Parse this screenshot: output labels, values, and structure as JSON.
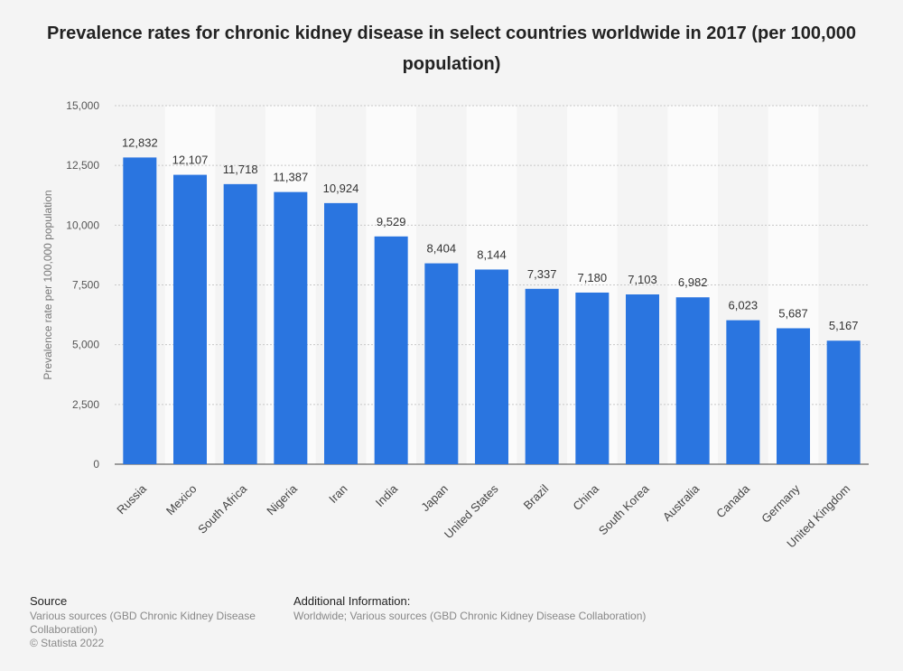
{
  "chart_data": {
    "type": "bar",
    "title": "Prevalence rates for chronic kidney disease in select countries worldwide in 2017 (per 100,000 population)",
    "ylabel": "Prevalence rate per 100,000 population",
    "xlabel": "",
    "ylim": [
      0,
      15000
    ],
    "yticks": [
      0,
      2500,
      5000,
      7500,
      10000,
      12500,
      15000
    ],
    "ytick_labels": [
      "0",
      "2,500",
      "5,000",
      "7,500",
      "10,000",
      "12,500",
      "15,000"
    ],
    "grid": true,
    "categories": [
      "Russia",
      "Mexico",
      "South Africa",
      "Nigeria",
      "Iran",
      "India",
      "Japan",
      "United States",
      "Brazil",
      "China",
      "South Korea",
      "Australia",
      "Canada",
      "Germany",
      "United Kingdom"
    ],
    "values": [
      12832,
      12107,
      11718,
      11387,
      10924,
      9529,
      8404,
      8144,
      7337,
      7180,
      7103,
      6982,
      6023,
      5687,
      5167
    ],
    "value_labels": [
      "12,832",
      "12,107",
      "11,718",
      "11,387",
      "10,924",
      "9,529",
      "8,404",
      "8,144",
      "7,337",
      "7,180",
      "7,103",
      "6,982",
      "6,023",
      "5,687",
      "5,167"
    ],
    "bar_color": "#2a75e0"
  },
  "footer": {
    "source_heading": "Source",
    "source_text": "Various sources (GBD Chronic Kidney Disease Collaboration)",
    "copyright": "© Statista 2022",
    "info_heading": "Additional Information:",
    "info_text": "Worldwide; Various sources (GBD Chronic Kidney Disease Collaboration)"
  }
}
